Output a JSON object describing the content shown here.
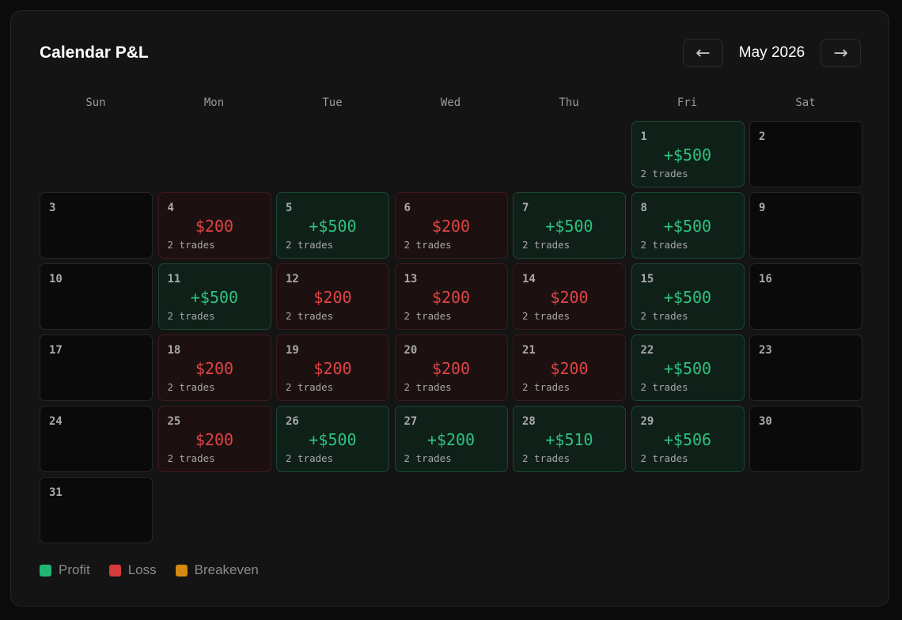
{
  "header": {
    "title": "Calendar P&L",
    "month_label": "May 2026",
    "prev_icon": "arrow-left-icon",
    "prev_glyph": "←",
    "next_icon": "arrow-right-icon",
    "next_glyph": "→"
  },
  "weekdays": [
    "Sun",
    "Mon",
    "Tue",
    "Wed",
    "Thu",
    "Fri",
    "Sat"
  ],
  "calendar": {
    "first_weekday": 5,
    "days": [
      {
        "day": "1",
        "status": "profit",
        "pnl": "+$500",
        "trades": "2 trades"
      },
      {
        "day": "2",
        "status": "empty"
      },
      {
        "day": "3",
        "status": "empty"
      },
      {
        "day": "4",
        "status": "loss",
        "pnl": "$200",
        "trades": "2 trades"
      },
      {
        "day": "5",
        "status": "profit",
        "pnl": "+$500",
        "trades": "2 trades"
      },
      {
        "day": "6",
        "status": "loss",
        "pnl": "$200",
        "trades": "2 trades"
      },
      {
        "day": "7",
        "status": "profit",
        "pnl": "+$500",
        "trades": "2 trades"
      },
      {
        "day": "8",
        "status": "profit",
        "pnl": "+$500",
        "trades": "2 trades"
      },
      {
        "day": "9",
        "status": "empty"
      },
      {
        "day": "10",
        "status": "empty"
      },
      {
        "day": "11",
        "status": "profit",
        "pnl": "+$500",
        "trades": "2 trades"
      },
      {
        "day": "12",
        "status": "loss",
        "pnl": "$200",
        "trades": "2 trades"
      },
      {
        "day": "13",
        "status": "loss",
        "pnl": "$200",
        "trades": "2 trades"
      },
      {
        "day": "14",
        "status": "loss",
        "pnl": "$200",
        "trades": "2 trades"
      },
      {
        "day": "15",
        "status": "profit",
        "pnl": "+$500",
        "trades": "2 trades"
      },
      {
        "day": "16",
        "status": "empty"
      },
      {
        "day": "17",
        "status": "empty"
      },
      {
        "day": "18",
        "status": "loss",
        "pnl": "$200",
        "trades": "2 trades"
      },
      {
        "day": "19",
        "status": "loss",
        "pnl": "$200",
        "trades": "2 trades"
      },
      {
        "day": "20",
        "status": "loss",
        "pnl": "$200",
        "trades": "2 trades"
      },
      {
        "day": "21",
        "status": "loss",
        "pnl": "$200",
        "trades": "2 trades"
      },
      {
        "day": "22",
        "status": "profit",
        "pnl": "+$500",
        "trades": "2 trades"
      },
      {
        "day": "23",
        "status": "empty"
      },
      {
        "day": "24",
        "status": "empty"
      },
      {
        "day": "25",
        "status": "loss",
        "pnl": "$200",
        "trades": "2 trades"
      },
      {
        "day": "26",
        "status": "profit",
        "pnl": "+$500",
        "trades": "2 trades"
      },
      {
        "day": "27",
        "status": "profit",
        "pnl": "+$200",
        "trades": "2 trades"
      },
      {
        "day": "28",
        "status": "profit",
        "pnl": "+$510",
        "trades": "2 trades"
      },
      {
        "day": "29",
        "status": "profit",
        "pnl": "+$506",
        "trades": "2 trades"
      },
      {
        "day": "30",
        "status": "empty"
      },
      {
        "day": "31",
        "status": "empty"
      }
    ]
  },
  "legend": [
    {
      "label": "Profit",
      "color": "#22b573"
    },
    {
      "label": "Loss",
      "color": "#d63a3a"
    },
    {
      "label": "Breakeven",
      "color": "#d68910"
    }
  ]
}
